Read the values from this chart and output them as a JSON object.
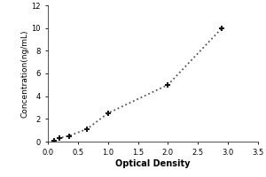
{
  "x": [
    0.1,
    0.188,
    0.35,
    0.65,
    1.0,
    2.0,
    2.9
  ],
  "y": [
    0.1,
    0.3,
    0.5,
    1.1,
    2.5,
    5.0,
    10.0
  ],
  "xlabel": "Optical Density",
  "ylabel": "Concentration(ng/mL)",
  "xlim": [
    0,
    3.5
  ],
  "ylim": [
    0,
    12
  ],
  "xticks": [
    0.0,
    0.5,
    1.0,
    1.5,
    2.0,
    2.5,
    3.0,
    3.5
  ],
  "yticks": [
    0,
    2,
    4,
    6,
    8,
    10,
    12
  ],
  "line_color": "#555555",
  "marker_color": "#111111",
  "background_color": "#ffffff",
  "line_style": "dotted",
  "marker": "+"
}
